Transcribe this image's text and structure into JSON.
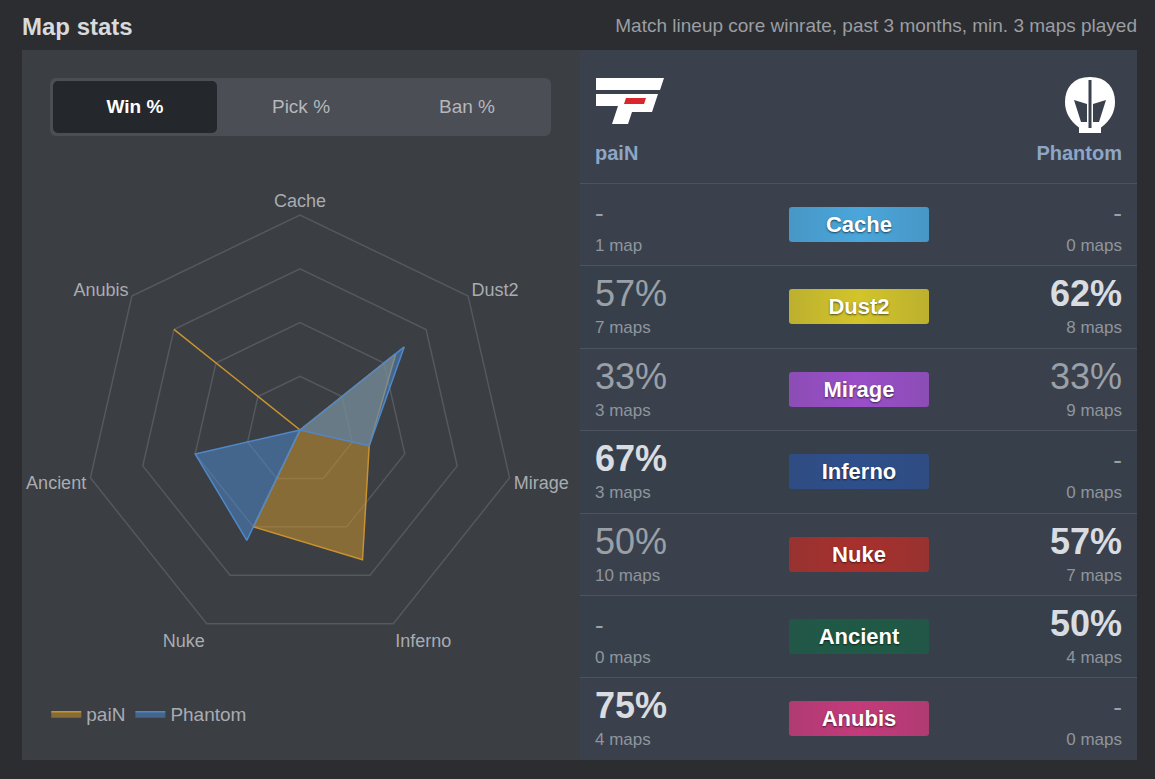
{
  "header": {
    "title": "Map stats",
    "subtitle": "Match lineup core winrate, past 3 months, min. 3 maps played"
  },
  "tabs": {
    "items": [
      "Win %",
      "Pick %",
      "Ban %"
    ],
    "active": "Win %"
  },
  "chart_data": {
    "type": "radar",
    "categories": [
      "Cache",
      "Dust2",
      "Mirage",
      "Inferno",
      "Nuke",
      "Ancient",
      "Anubis"
    ],
    "ylim": [
      0,
      100
    ],
    "yticks": [
      0,
      25,
      50,
      75,
      100
    ],
    "tick_labels": "x",
    "grid": true,
    "legend": "bottom left",
    "series": [
      {
        "name": "paiN",
        "color": "#c9922e",
        "values": [
          0,
          57,
          33,
          67,
          50,
          0,
          75
        ]
      },
      {
        "name": "Phantom",
        "color": "#4f87c8",
        "values": [
          0,
          62,
          33,
          0,
          57,
          50,
          0
        ]
      }
    ]
  },
  "table": {
    "teams": [
      "paiN",
      "Phantom"
    ],
    "rows": [
      {
        "map": "Cache",
        "color": "#4aa6db",
        "left": {
          "value": null,
          "label": "-",
          "maps": "1 map"
        },
        "right": {
          "value": null,
          "label": "-",
          "maps": "0 maps"
        }
      },
      {
        "map": "Dust2",
        "color": "#d3c42a",
        "left": {
          "value": 57,
          "label": "57%",
          "maps": "7 maps"
        },
        "right": {
          "value": 62,
          "label": "62%",
          "maps": "8 maps"
        }
      },
      {
        "map": "Mirage",
        "color": "#9a4fc8",
        "left": {
          "value": 33,
          "label": "33%",
          "maps": "3 maps"
        },
        "right": {
          "value": 33,
          "label": "33%",
          "maps": "9 maps"
        }
      },
      {
        "map": "Inferno",
        "color": "#2e4f8c",
        "left": {
          "value": 67,
          "label": "67%",
          "maps": "3 maps"
        },
        "right": {
          "value": null,
          "label": "-",
          "maps": "0 maps"
        }
      },
      {
        "map": "Nuke",
        "color": "#a8302c",
        "left": {
          "value": 50,
          "label": "50%",
          "maps": "10 maps"
        },
        "right": {
          "value": 57,
          "label": "57%",
          "maps": "7 maps"
        }
      },
      {
        "map": "Ancient",
        "color": "#1f5a46",
        "left": {
          "value": null,
          "label": "-",
          "maps": "0 maps"
        },
        "right": {
          "value": 50,
          "label": "50%",
          "maps": "4 maps"
        }
      },
      {
        "map": "Anubis",
        "color": "#c43a7a",
        "left": {
          "value": 75,
          "label": "75%",
          "maps": "4 maps"
        },
        "right": {
          "value": null,
          "label": "-",
          "maps": "0 maps"
        }
      }
    ]
  }
}
